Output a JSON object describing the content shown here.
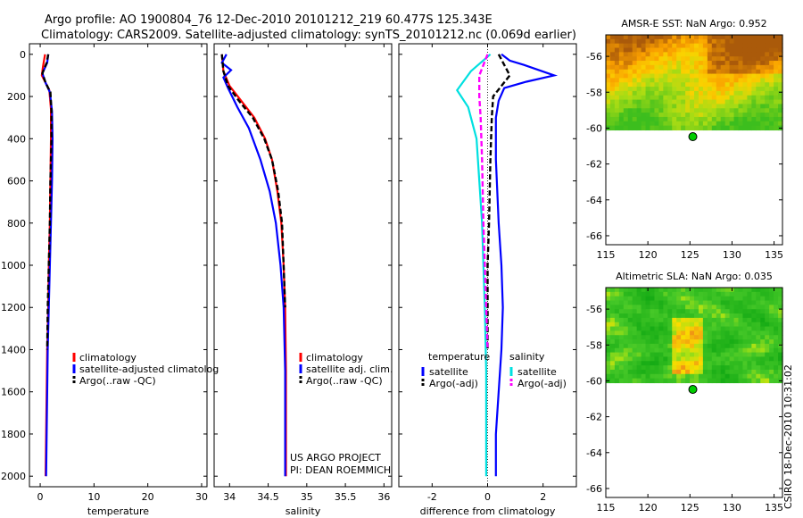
{
  "header": {
    "line1": "Argo profile: AO 1900804_76 12-Dec-2010 20101212_219 60.477S 125.343E",
    "line2": "Climatology: CARS2009. Satellite-adjusted climatology: synTS_20101212.nc (0.069d earlier)"
  },
  "credit": "CSIRO 18-Dec-2010 10:31:02",
  "colors": {
    "clim": "#ff0000",
    "sat": "#0000ff",
    "argo": "#000000",
    "sal_sat": "#00e0e0",
    "sal_argo": "#ff00ff",
    "dot": "#00cc00"
  },
  "chart_data": [
    {
      "type": "line",
      "id": "temperature",
      "xlabel": "temperature",
      "xlim": [
        -2,
        31
      ],
      "ylim": [
        2050,
        0
      ],
      "yticks": [
        0,
        200,
        400,
        600,
        800,
        1000,
        1200,
        1400,
        1600,
        1800,
        2000
      ],
      "xticks": [
        0,
        10,
        20,
        30
      ],
      "legend": [
        "climatology",
        "satellite-adjusted climatolog",
        "Argo(..raw -QC)"
      ],
      "series": [
        {
          "name": "climatology",
          "color": "clim",
          "dash": "",
          "x": [
            0.9,
            0.5,
            0.3,
            0.9,
            1.7,
            2.0,
            2.0,
            1.9,
            1.8,
            1.6,
            1.5,
            1.3,
            1.1,
            1.0
          ],
          "y": [
            0,
            60,
            100,
            130,
            170,
            260,
            400,
            600,
            800,
            1000,
            1200,
            1400,
            1800,
            2000
          ]
        },
        {
          "name": "satellite-adjusted climatology",
          "color": "sat",
          "dash": "",
          "x": [
            1.5,
            1.3,
            0.4,
            1.0,
            1.8,
            2.2,
            2.3,
            2.2,
            2.0,
            1.8,
            1.6,
            1.4,
            1.2,
            1.1
          ],
          "y": [
            0,
            40,
            90,
            135,
            180,
            270,
            400,
            600,
            800,
            1000,
            1200,
            1400,
            1800,
            2000
          ]
        },
        {
          "name": "Argo(..raw -QC)",
          "color": "argo",
          "dash": "6,3",
          "x": [
            1.5,
            1.2,
            0.4,
            1.0,
            1.9,
            2.1,
            2.1,
            1.9,
            1.8,
            1.6,
            1.4,
            1.3
          ],
          "y": [
            0,
            40,
            90,
            135,
            180,
            270,
            400,
            600,
            800,
            1000,
            1200,
            1400
          ]
        }
      ]
    },
    {
      "type": "line",
      "id": "salinity",
      "xlabel": "salinity",
      "xlim": [
        33.8,
        36.1
      ],
      "ylim": [
        2050,
        0
      ],
      "xticks": [
        34,
        34.5,
        35,
        35.5,
        36
      ],
      "legend": [
        "climatology",
        "satellite adj. clim.",
        "Argo(..raw -QC)"
      ],
      "annotation": [
        "US ARGO PROJECT",
        "PI: DEAN ROEMMICH"
      ],
      "series": [
        {
          "name": "climatology",
          "color": "clim",
          "dash": "",
          "x": [
            33.9,
            33.92,
            34.0,
            34.15,
            34.32,
            34.46,
            34.55,
            34.62,
            34.67,
            34.7,
            34.72,
            34.73,
            34.73,
            34.73
          ],
          "y": [
            0,
            80,
            150,
            220,
            300,
            400,
            500,
            650,
            800,
            1000,
            1200,
            1500,
            1800,
            2000
          ]
        },
        {
          "name": "satellite adj. clim.",
          "color": "sat",
          "dash": "",
          "x": [
            33.96,
            33.9,
            34.02,
            33.92,
            33.98,
            34.1,
            34.25,
            34.4,
            34.52,
            34.6,
            34.66,
            34.7,
            34.72,
            34.72,
            34.72
          ],
          "y": [
            0,
            40,
            75,
            110,
            160,
            250,
            350,
            500,
            650,
            800,
            1000,
            1200,
            1500,
            1800,
            2000
          ]
        },
        {
          "name": "Argo(..raw -QC)",
          "color": "argo",
          "dash": "6,3",
          "x": [
            33.9,
            33.92,
            33.98,
            34.12,
            34.3,
            34.45,
            34.55,
            34.63,
            34.68,
            34.7,
            34.72
          ],
          "y": [
            0,
            80,
            150,
            220,
            300,
            400,
            500,
            650,
            800,
            1000,
            1200
          ]
        }
      ]
    },
    {
      "type": "line",
      "id": "difference",
      "xlabel": "difference from climatology",
      "xlim": [
        -3.2,
        3.2
      ],
      "ylim": [
        2050,
        0
      ],
      "xticks": [
        -2,
        0,
        2
      ],
      "legend_titles": [
        "temperature",
        "salinity"
      ],
      "legend": [
        "satellite",
        "Argo(-adj)",
        "satellite",
        "Argo(-adj)"
      ],
      "series": [
        {
          "name": "temperature satellite",
          "color": "sat",
          "dash": "",
          "x": [
            0.5,
            0.8,
            1.3,
            2.4,
            1.4,
            0.6,
            0.4,
            0.3,
            0.3,
            0.4,
            0.5,
            0.55,
            0.5,
            0.4,
            0.3,
            0.3
          ],
          "y": [
            0,
            30,
            50,
            100,
            130,
            160,
            220,
            300,
            500,
            800,
            1000,
            1200,
            1400,
            1600,
            1800,
            2000
          ]
        },
        {
          "name": "temperature Argo(-adj)",
          "color": "argo",
          "dash": "6,3",
          "x": [
            0.4,
            0.8,
            0.5,
            0.2,
            0.15,
            0.1,
            0.05,
            0.0,
            0.0
          ],
          "y": [
            0,
            100,
            150,
            200,
            300,
            500,
            800,
            1000,
            1400
          ]
        },
        {
          "name": "salinity satellite",
          "color": "sal_sat",
          "dash": "",
          "x": [
            0.1,
            -0.6,
            -1.1,
            -0.7,
            -0.4,
            -0.3,
            -0.2,
            -0.15,
            -0.1,
            -0.05,
            -0.05
          ],
          "y": [
            0,
            80,
            170,
            250,
            400,
            600,
            800,
            1000,
            1200,
            1500,
            2000
          ]
        },
        {
          "name": "salinity Argo(-adj)",
          "color": "sal_argo",
          "dash": "6,3",
          "x": [
            0.0,
            -0.3,
            -0.3,
            -0.25,
            -0.2,
            -0.15,
            -0.1,
            -0.05,
            0.0
          ],
          "y": [
            0,
            100,
            200,
            300,
            500,
            800,
            1000,
            1200,
            1400
          ]
        }
      ]
    },
    {
      "type": "heatmap",
      "id": "sst_map",
      "title": "AMSR-E SST: NaN Argo: 0.952",
      "xlim": [
        115,
        136
      ],
      "ylim": [
        -66.5,
        -54.8
      ],
      "xticks": [
        115,
        120,
        125,
        130,
        135
      ],
      "yticks": [
        -56,
        -58,
        -60,
        -62,
        -64,
        -66
      ],
      "data_ymin": -60.1,
      "argo_point": {
        "lon": 125.343,
        "lat": -60.477
      },
      "palette": "sst"
    },
    {
      "type": "heatmap",
      "id": "sla_map",
      "title": "Altimetric SLA: NaN Argo: 0.035",
      "xlim": [
        115,
        136
      ],
      "ylim": [
        -66.5,
        -54.8
      ],
      "xticks": [
        115,
        120,
        125,
        130,
        135
      ],
      "yticks": [
        -56,
        -58,
        -60,
        -62,
        -64,
        -66
      ],
      "data_ymin": -60.1,
      "argo_point": {
        "lon": 125.343,
        "lat": -60.477
      },
      "palette": "sla"
    }
  ]
}
